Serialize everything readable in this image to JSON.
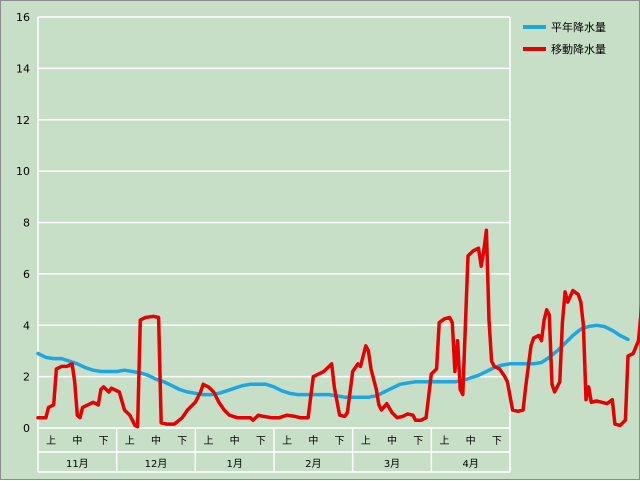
{
  "chart_data": {
    "type": "line",
    "title": "",
    "xlabel": "",
    "ylabel": "",
    "ylim": [
      0,
      16
    ],
    "y_ticks": [
      0,
      2,
      4,
      6,
      8,
      10,
      12,
      14,
      16
    ],
    "grid": true,
    "legend_position": "top-right",
    "months": [
      "11月",
      "12月",
      "1月",
      "2月",
      "3月",
      "4月"
    ],
    "dekads": [
      "上",
      "中",
      "下"
    ],
    "x_points_per_month": 30,
    "series": [
      {
        "name": "平年降水量",
        "color": "#1ea6e0",
        "points": [
          [
            0,
            2.9
          ],
          [
            3,
            2.75
          ],
          [
            6,
            2.7
          ],
          [
            9,
            2.7
          ],
          [
            12,
            2.6
          ],
          [
            15,
            2.5
          ],
          [
            18,
            2.35
          ],
          [
            21,
            2.25
          ],
          [
            24,
            2.2
          ],
          [
            27,
            2.2
          ],
          [
            30,
            2.2
          ],
          [
            33,
            2.25
          ],
          [
            36,
            2.2
          ],
          [
            39,
            2.15
          ],
          [
            42,
            2.05
          ],
          [
            45,
            1.9
          ],
          [
            48,
            1.8
          ],
          [
            51,
            1.65
          ],
          [
            54,
            1.5
          ],
          [
            57,
            1.4
          ],
          [
            60,
            1.35
          ],
          [
            63,
            1.3
          ],
          [
            66,
            1.3
          ],
          [
            69,
            1.35
          ],
          [
            72,
            1.45
          ],
          [
            75,
            1.55
          ],
          [
            78,
            1.65
          ],
          [
            81,
            1.7
          ],
          [
            84,
            1.7
          ],
          [
            87,
            1.7
          ],
          [
            90,
            1.6
          ],
          [
            93,
            1.45
          ],
          [
            96,
            1.35
          ],
          [
            99,
            1.3
          ],
          [
            102,
            1.3
          ],
          [
            105,
            1.3
          ],
          [
            108,
            1.3
          ],
          [
            111,
            1.3
          ],
          [
            114,
            1.25
          ],
          [
            117,
            1.2
          ],
          [
            120,
            1.2
          ],
          [
            123,
            1.2
          ],
          [
            126,
            1.2
          ],
          [
            129,
            1.25
          ],
          [
            132,
            1.4
          ],
          [
            135,
            1.55
          ],
          [
            138,
            1.7
          ],
          [
            141,
            1.75
          ],
          [
            144,
            1.8
          ],
          [
            147,
            1.8
          ],
          [
            150,
            1.8
          ],
          [
            153,
            1.8
          ],
          [
            156,
            1.8
          ],
          [
            159,
            1.8
          ],
          [
            162,
            1.85
          ],
          [
            165,
            1.95
          ],
          [
            168,
            2.05
          ],
          [
            171,
            2.2
          ],
          [
            174,
            2.35
          ],
          [
            177,
            2.45
          ],
          [
            180,
            2.5
          ],
          [
            183,
            2.5
          ],
          [
            186,
            2.5
          ],
          [
            189,
            2.5
          ],
          [
            192,
            2.55
          ],
          [
            195,
            2.75
          ],
          [
            198,
            3.0
          ],
          [
            201,
            3.3
          ],
          [
            204,
            3.6
          ],
          [
            207,
            3.85
          ],
          [
            210,
            3.95
          ],
          [
            213,
            4.0
          ],
          [
            216,
            3.95
          ],
          [
            219,
            3.8
          ],
          [
            222,
            3.6
          ],
          [
            225,
            3.45
          ]
        ]
      },
      {
        "name": "移動降水量",
        "color": "#e60000",
        "points": [
          [
            0,
            0.4
          ],
          [
            3,
            0.4
          ],
          [
            4,
            0.8
          ],
          [
            6,
            0.9
          ],
          [
            7,
            2.3
          ],
          [
            9,
            2.4
          ],
          [
            11,
            2.4
          ],
          [
            13,
            2.5
          ],
          [
            14,
            1.8
          ],
          [
            15,
            0.5
          ],
          [
            16,
            0.4
          ],
          [
            17,
            0.8
          ],
          [
            19,
            0.9
          ],
          [
            21,
            1.0
          ],
          [
            23,
            0.9
          ],
          [
            24,
            1.5
          ],
          [
            25,
            1.6
          ],
          [
            27,
            1.4
          ],
          [
            28,
            1.55
          ],
          [
            31,
            1.4
          ],
          [
            33,
            0.7
          ],
          [
            35,
            0.5
          ],
          [
            37,
            0.1
          ],
          [
            38,
            0.05
          ],
          [
            39,
            4.2
          ],
          [
            41,
            4.3
          ],
          [
            44,
            4.35
          ],
          [
            46,
            4.3
          ],
          [
            47,
            0.2
          ],
          [
            49,
            0.15
          ],
          [
            52,
            0.15
          ],
          [
            55,
            0.4
          ],
          [
            57,
            0.7
          ],
          [
            60,
            1.0
          ],
          [
            62,
            1.4
          ],
          [
            63,
            1.7
          ],
          [
            65,
            1.6
          ],
          [
            67,
            1.4
          ],
          [
            69,
            1.0
          ],
          [
            71,
            0.7
          ],
          [
            73,
            0.5
          ],
          [
            76,
            0.4
          ],
          [
            79,
            0.4
          ],
          [
            81,
            0.4
          ],
          [
            82,
            0.3
          ],
          [
            84,
            0.5
          ],
          [
            86,
            0.45
          ],
          [
            89,
            0.4
          ],
          [
            92,
            0.4
          ],
          [
            95,
            0.5
          ],
          [
            98,
            0.45
          ],
          [
            100,
            0.4
          ],
          [
            103,
            0.4
          ],
          [
            105,
            2.0
          ],
          [
            107,
            2.1
          ],
          [
            109,
            2.2
          ],
          [
            111,
            2.4
          ],
          [
            112,
            2.5
          ],
          [
            113,
            1.6
          ],
          [
            115,
            0.5
          ],
          [
            117,
            0.45
          ],
          [
            118,
            0.6
          ],
          [
            120,
            2.2
          ],
          [
            122,
            2.5
          ],
          [
            123,
            2.4
          ],
          [
            125,
            3.2
          ],
          [
            126,
            3.0
          ],
          [
            127,
            2.3
          ],
          [
            129,
            1.5
          ],
          [
            130,
            0.9
          ],
          [
            131,
            0.7
          ],
          [
            133,
            0.95
          ],
          [
            135,
            0.6
          ],
          [
            137,
            0.4
          ],
          [
            139,
            0.45
          ],
          [
            141,
            0.55
          ],
          [
            143,
            0.5
          ],
          [
            144,
            0.3
          ],
          [
            146,
            0.3
          ],
          [
            148,
            0.4
          ],
          [
            150,
            2.1
          ],
          [
            152,
            2.3
          ],
          [
            153,
            4.1
          ],
          [
            155,
            4.25
          ],
          [
            157,
            4.3
          ],
          [
            158,
            4.1
          ],
          [
            159,
            2.2
          ],
          [
            160,
            3.4
          ],
          [
            161,
            1.5
          ],
          [
            162,
            1.3
          ],
          [
            163,
            4.0
          ],
          [
            164,
            6.7
          ],
          [
            166,
            6.9
          ],
          [
            168,
            7.0
          ],
          [
            169,
            6.3
          ],
          [
            170,
            6.9
          ],
          [
            171,
            7.7
          ],
          [
            172,
            4.2
          ],
          [
            173,
            2.6
          ],
          [
            174,
            2.4
          ],
          [
            176,
            2.3
          ],
          [
            178,
            2.0
          ],
          [
            179,
            1.8
          ],
          [
            181,
            0.7
          ],
          [
            183,
            0.65
          ],
          [
            185,
            0.7
          ],
          [
            186,
            1.6
          ],
          [
            188,
            3.2
          ],
          [
            189,
            3.5
          ],
          [
            191,
            3.6
          ],
          [
            192,
            3.4
          ],
          [
            193,
            4.2
          ],
          [
            194,
            4.6
          ],
          [
            195,
            4.4
          ],
          [
            196,
            1.7
          ],
          [
            197,
            1.4
          ],
          [
            199,
            1.8
          ],
          [
            200,
            4.1
          ],
          [
            201,
            5.3
          ],
          [
            202,
            4.9
          ],
          [
            204,
            5.35
          ],
          [
            206,
            5.2
          ],
          [
            207,
            4.9
          ],
          [
            208,
            4.0
          ],
          [
            209,
            1.1
          ],
          [
            210,
            1.6
          ],
          [
            211,
            1.0
          ],
          [
            213,
            1.05
          ],
          [
            215,
            1.0
          ],
          [
            217,
            0.95
          ],
          [
            219,
            1.1
          ],
          [
            220,
            0.15
          ],
          [
            222,
            0.1
          ],
          [
            224,
            0.3
          ],
          [
            225,
            2.8
          ],
          [
            227,
            2.9
          ],
          [
            229,
            3.4
          ],
          [
            230,
            4.5
          ],
          [
            231,
            5.75
          ],
          [
            233,
            5.7
          ],
          [
            234,
            4.0
          ],
          [
            235,
            3.0
          ]
        ]
      }
    ]
  }
}
